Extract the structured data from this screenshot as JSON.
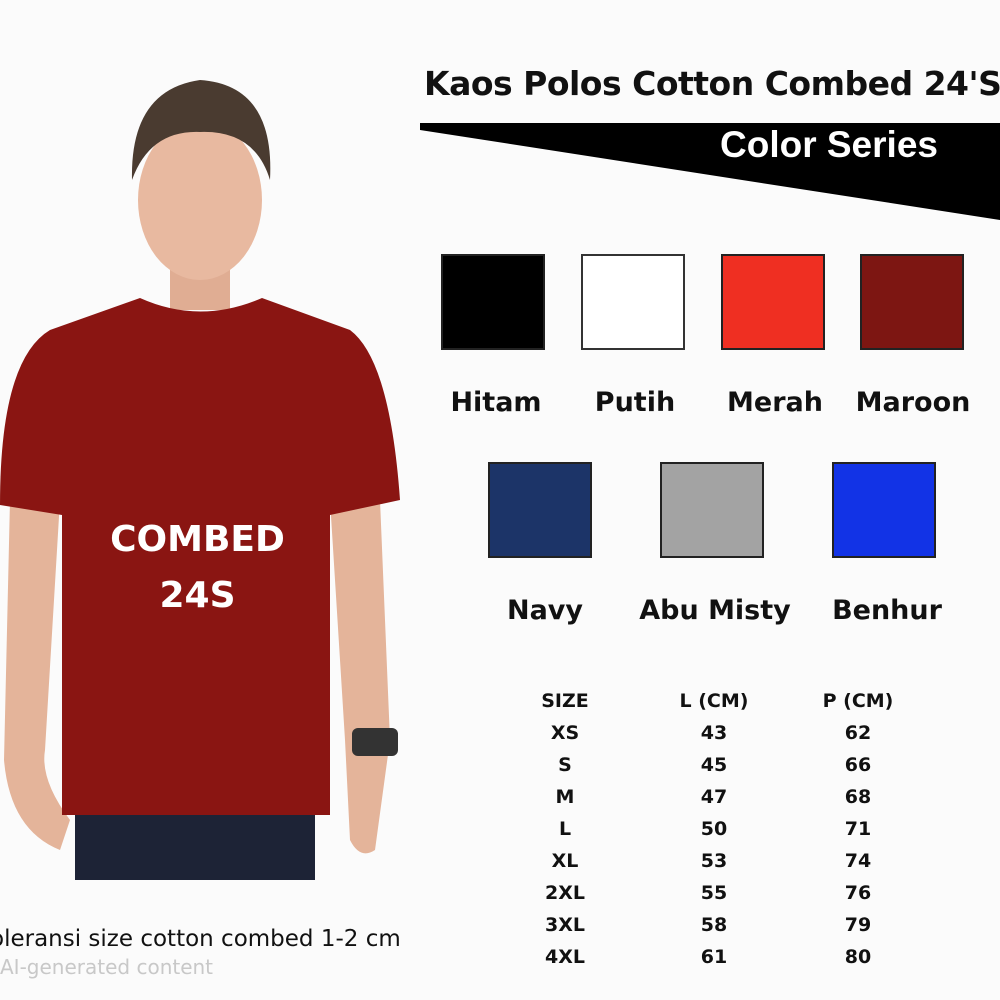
{
  "title": "Kaos Polos Cotton Combed 24'S",
  "subtitle": "Color Series",
  "shirt_print": {
    "line1": "COMBED",
    "line2": "24S",
    "shirt_color": "#8a1512"
  },
  "colors": [
    {
      "name": "Hitam",
      "hex": "#000000"
    },
    {
      "name": "Putih",
      "hex": "#ffffff"
    },
    {
      "name": "Merah",
      "hex": "#ef2f22"
    },
    {
      "name": "Maroon",
      "hex": "#7d1612"
    },
    {
      "name": "Navy",
      "hex": "#1c3468"
    },
    {
      "name": "Abu Misty",
      "hex": "#a3a3a3"
    },
    {
      "name": "Benhur",
      "hex": "#1233e6"
    }
  ],
  "size_table": {
    "headers": [
      "SIZE",
      "L (CM)",
      "P (CM)"
    ],
    "rows": [
      [
        "XS",
        "43",
        "62"
      ],
      [
        "S",
        "45",
        "66"
      ],
      [
        "M",
        "47",
        "68"
      ],
      [
        "L",
        "50",
        "71"
      ],
      [
        "XL",
        "53",
        "74"
      ],
      [
        "2XL",
        "55",
        "76"
      ],
      [
        "3XL",
        "58",
        "79"
      ],
      [
        "4XL",
        "61",
        "80"
      ]
    ]
  },
  "tolerance_note": "oleransi size cotton combed 1-2 cm",
  "ai_label": "AI-generated content"
}
